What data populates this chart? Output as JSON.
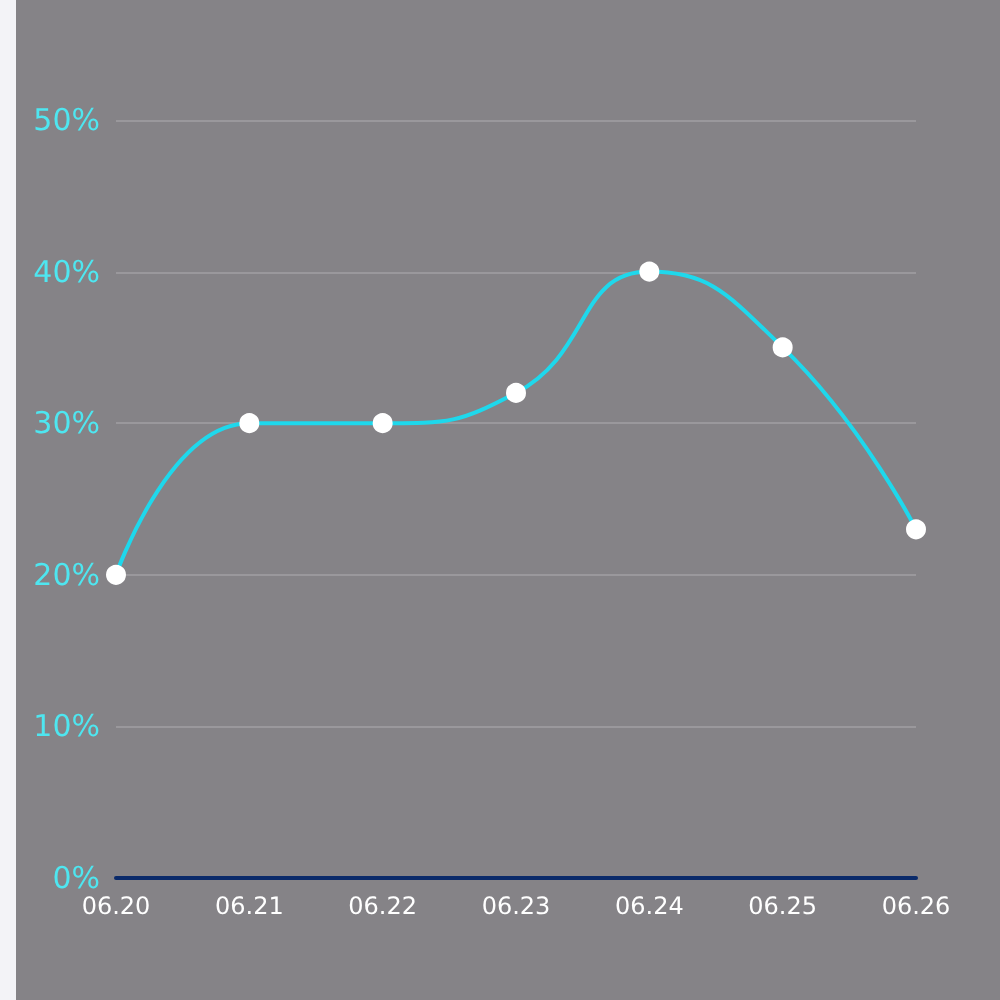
{
  "chart_data": {
    "type": "line",
    "categories": [
      "06.20",
      "06.21",
      "06.22",
      "06.23",
      "06.24",
      "06.25",
      "06.26"
    ],
    "series": [
      {
        "color": "#1ed8ec",
        "values": [
          20,
          30,
          30,
          32,
          40,
          35,
          23
        ]
      }
    ],
    "ylim": [
      0,
      50
    ],
    "yticks": [
      {
        "value": 0,
        "label": "0%"
      },
      {
        "value": 10,
        "label": "10%"
      },
      {
        "value": 20,
        "label": "20%"
      },
      {
        "value": 30,
        "label": "30%"
      },
      {
        "value": 40,
        "label": "40%"
      },
      {
        "value": 50,
        "label": "50%"
      }
    ],
    "grid": "y",
    "marker": "circle",
    "line_style": "solid"
  }
}
